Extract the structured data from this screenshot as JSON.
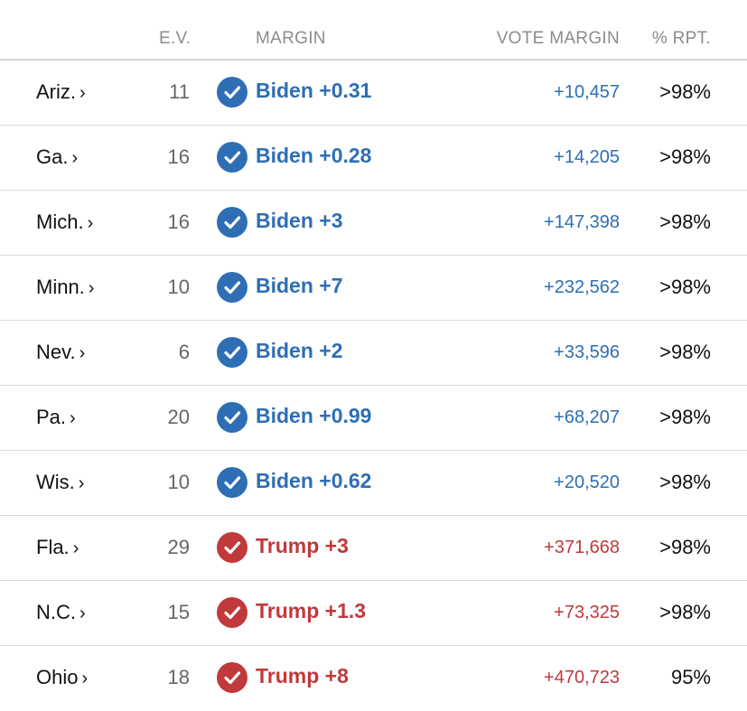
{
  "header": {
    "ev": "E.V.",
    "margin": "MARGIN",
    "vote_margin": "VOTE MARGIN",
    "pct_rpt": "% RPT."
  },
  "colors": {
    "dem": "#2e6eb5",
    "rep": "#c0393b"
  },
  "rows": [
    {
      "state": "Ariz.",
      "ev": "11",
      "party": "dem",
      "margin": "Biden +0.31",
      "vote_margin": "+10,457",
      "pct": ">98%"
    },
    {
      "state": "Ga.",
      "ev": "16",
      "party": "dem",
      "margin": "Biden +0.28",
      "vote_margin": "+14,205",
      "pct": ">98%"
    },
    {
      "state": "Mich.",
      "ev": "16",
      "party": "dem",
      "margin": "Biden +3",
      "vote_margin": "+147,398",
      "pct": ">98%"
    },
    {
      "state": "Minn.",
      "ev": "10",
      "party": "dem",
      "margin": "Biden +7",
      "vote_margin": "+232,562",
      "pct": ">98%"
    },
    {
      "state": "Nev.",
      "ev": "6",
      "party": "dem",
      "margin": "Biden +2",
      "vote_margin": "+33,596",
      "pct": ">98%"
    },
    {
      "state": "Pa.",
      "ev": "20",
      "party": "dem",
      "margin": "Biden +0.99",
      "vote_margin": "+68,207",
      "pct": ">98%"
    },
    {
      "state": "Wis.",
      "ev": "10",
      "party": "dem",
      "margin": "Biden +0.62",
      "vote_margin": "+20,520",
      "pct": ">98%"
    },
    {
      "state": "Fla.",
      "ev": "29",
      "party": "rep",
      "margin": "Trump +3",
      "vote_margin": "+371,668",
      "pct": ">98%"
    },
    {
      "state": "N.C.",
      "ev": "15",
      "party": "rep",
      "margin": "Trump +1.3",
      "vote_margin": "+73,325",
      "pct": ">98%"
    },
    {
      "state": "Ohio",
      "ev": "18",
      "party": "rep",
      "margin": "Trump +8",
      "vote_margin": "+470,723",
      "pct": "95%"
    }
  ]
}
